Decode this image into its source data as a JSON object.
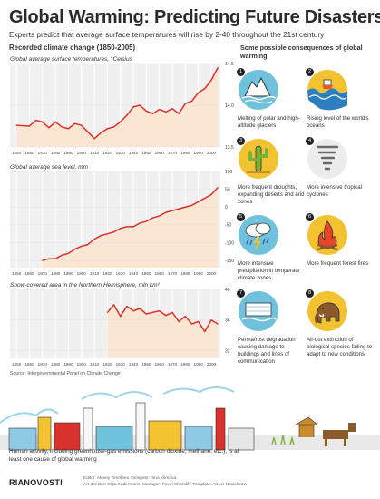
{
  "title": "Global Warming: Predicting Future Disasters",
  "subtitle": "Experts predict that average surface temperatures will rise by 2-40 throughout the 21st century",
  "section_title": "Recorded climate change (1850-2005)",
  "source": "Source: Intergovernmental Panel on Climate Change",
  "chart_data": [
    {
      "type": "line",
      "title": "Global average surface temperatures, °Celsius",
      "x": [
        1850,
        1860,
        1865,
        1870,
        1875,
        1880,
        1885,
        1890,
        1895,
        1900,
        1905,
        1910,
        1915,
        1920,
        1925,
        1930,
        1935,
        1940,
        1945,
        1950,
        1955,
        1960,
        1965,
        1970,
        1975,
        1980,
        1985,
        1990,
        1995,
        2000,
        2005
      ],
      "y": [
        13.76,
        13.75,
        13.82,
        13.8,
        13.73,
        13.8,
        13.74,
        13.72,
        13.78,
        13.76,
        13.68,
        13.6,
        13.67,
        13.72,
        13.74,
        13.8,
        13.88,
        13.98,
        14.0,
        13.93,
        13.9,
        13.95,
        13.92,
        13.96,
        13.9,
        14.02,
        14.05,
        14.15,
        14.2,
        14.3,
        14.45
      ],
      "xticks": [
        "1850",
        "1860",
        "1870",
        "1880",
        "1890",
        "1900",
        "1910",
        "1920",
        "1930",
        "1940",
        "1950",
        "1960",
        "1970",
        "1980",
        "1990",
        "2000"
      ],
      "yticks": [
        "13.5",
        "14.0",
        "14.5"
      ],
      "ylim": [
        13.5,
        14.5
      ],
      "xlim": [
        1845,
        2007
      ]
    },
    {
      "type": "line",
      "title": "Global average sea level, mm",
      "x": [
        1870,
        1875,
        1880,
        1885,
        1890,
        1895,
        1900,
        1905,
        1910,
        1915,
        1920,
        1925,
        1930,
        1935,
        1940,
        1945,
        1950,
        1955,
        1960,
        1965,
        1970,
        1975,
        1980,
        1985,
        1990,
        1995,
        2000,
        2005
      ],
      "y": [
        -150,
        -145,
        -145,
        -135,
        -130,
        -118,
        -110,
        -105,
        -90,
        -80,
        -75,
        -70,
        -60,
        -55,
        -55,
        -45,
        -40,
        -30,
        -25,
        -15,
        -10,
        -5,
        0,
        5,
        15,
        25,
        35,
        55
      ],
      "xticks": [
        "1850",
        "1860",
        "1870",
        "1880",
        "1890",
        "1900",
        "1910",
        "1920",
        "1930",
        "1940",
        "1950",
        "1960",
        "1970",
        "1980",
        "1990",
        "2000"
      ],
      "yticks": [
        "-150",
        "-100",
        "-50",
        "0",
        "50",
        "100"
      ],
      "ylim": [
        -170,
        100
      ],
      "xlim": [
        1845,
        2007
      ]
    },
    {
      "type": "line",
      "title": "Snow-covered area in the Northern Hemisphere, mln km²",
      "x": [
        1920,
        1925,
        1930,
        1935,
        1940,
        1945,
        1950,
        1955,
        1960,
        1965,
        1970,
        1975,
        1980,
        1985,
        1990,
        1995,
        2000,
        2005
      ],
      "y": [
        37.0,
        38.0,
        36.5,
        37.8,
        37.2,
        37.5,
        36.8,
        37.0,
        37.2,
        36.6,
        37.0,
        35.8,
        36.5,
        35.5,
        35.8,
        34.5,
        36.0,
        35.5
      ],
      "xticks": [
        "1850",
        "1860",
        "1870",
        "1880",
        "1890",
        "1900",
        "1910",
        "1920",
        "1930",
        "1940",
        "1950",
        "1960",
        "1970",
        "1980",
        "1990",
        "2000"
      ],
      "yticks": [
        "32",
        "36",
        "40"
      ],
      "ylim": [
        31,
        40
      ],
      "xlim": [
        1845,
        2007
      ]
    }
  ],
  "consequences": {
    "title": "Some possible consequences of global warming",
    "items": [
      {
        "num": "1",
        "label": "Melting of polar and high-altitude glaciers",
        "icon": "glacier-icon"
      },
      {
        "num": "2",
        "label": "Rising level of the world's oceans",
        "icon": "ocean-icon"
      },
      {
        "num": "3",
        "label": "More frequent droughts, expanding deserts and arid zones",
        "icon": "cactus-icon"
      },
      {
        "num": "4",
        "label": "More intensive tropical cyclones",
        "icon": "tornado-icon"
      },
      {
        "num": "5",
        "label": "More intensive precipitation in temperate climate zones",
        "icon": "storm-icon"
      },
      {
        "num": "6",
        "label": "More frequent forest fires",
        "icon": "fire-icon"
      },
      {
        "num": "7",
        "label": "Permafrost degradation causing damage to buildings and lines of communication",
        "icon": "permafrost-icon"
      },
      {
        "num": "8",
        "label": "All-out extinction of biological species failing to adapt to new conditions",
        "icon": "mammoth-icon"
      }
    ]
  },
  "footer_caption": "Human activity, including greenhouse-gas emissions (carbon dioxide, methane, etc.), is at least one cause of global warming",
  "logo": "RIANOVOSTI",
  "credits": [
    "Editor: Alexey Timofeev. Designer: Irina Klimova.",
    "Art director: Olga Kudermann. Manager: Pavel Shorokh. Template: Alexei Novichkov."
  ],
  "colors": {
    "line": "#d9312b",
    "fill": "#fbe6d3",
    "panel": "#f0f0f0",
    "icon_circle": "#6fc1dc",
    "accent": "#f2c230"
  }
}
